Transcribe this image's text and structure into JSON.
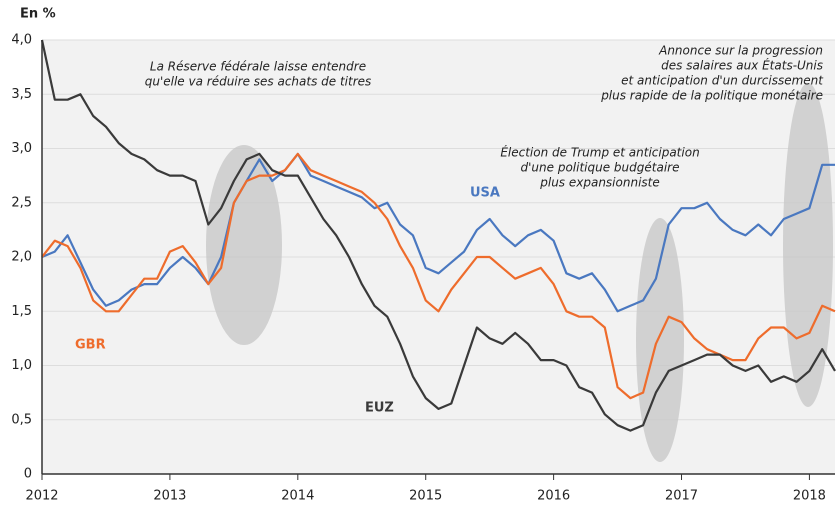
{
  "chart_data": {
    "type": "line",
    "ylabel": "En %",
    "x": [
      2012.0,
      2012.1,
      2012.2,
      2012.3,
      2012.4,
      2012.5,
      2012.6,
      2012.7,
      2012.8,
      2012.9,
      2013.0,
      2013.1,
      2013.2,
      2013.3,
      2013.4,
      2013.5,
      2013.6,
      2013.7,
      2013.8,
      2013.9,
      2014.0,
      2014.1,
      2014.2,
      2014.3,
      2014.4,
      2014.5,
      2014.6,
      2014.7,
      2014.8,
      2014.9,
      2015.0,
      2015.1,
      2015.2,
      2015.3,
      2015.4,
      2015.5,
      2015.6,
      2015.7,
      2015.8,
      2015.9,
      2016.0,
      2016.1,
      2016.2,
      2016.3,
      2016.4,
      2016.5,
      2016.6,
      2016.7,
      2016.8,
      2016.9,
      2017.0,
      2017.1,
      2017.2,
      2017.3,
      2017.4,
      2017.5,
      2017.6,
      2017.7,
      2017.8,
      2017.9,
      2018.0,
      2018.1,
      2018.2
    ],
    "series": [
      {
        "name": "USA",
        "color": "#4a78c0",
        "values": [
          2.0,
          2.05,
          2.2,
          1.95,
          1.7,
          1.55,
          1.6,
          1.7,
          1.75,
          1.75,
          1.9,
          2.0,
          1.9,
          1.75,
          2.0,
          2.5,
          2.7,
          2.9,
          2.7,
          2.8,
          2.95,
          2.75,
          2.7,
          2.65,
          2.6,
          2.55,
          2.45,
          2.5,
          2.3,
          2.2,
          1.9,
          1.85,
          1.95,
          2.05,
          2.25,
          2.35,
          2.2,
          2.1,
          2.2,
          2.25,
          2.15,
          1.85,
          1.8,
          1.85,
          1.7,
          1.5,
          1.55,
          1.6,
          1.8,
          2.3,
          2.45,
          2.45,
          2.5,
          2.35,
          2.25,
          2.2,
          2.3,
          2.2,
          2.35,
          2.4,
          2.45,
          2.85,
          2.85
        ]
      },
      {
        "name": "GBR",
        "color": "#ee6c2c",
        "values": [
          2.0,
          2.15,
          2.1,
          1.9,
          1.6,
          1.5,
          1.5,
          1.65,
          1.8,
          1.8,
          2.05,
          2.1,
          1.95,
          1.75,
          1.9,
          2.5,
          2.7,
          2.75,
          2.75,
          2.8,
          2.95,
          2.8,
          2.75,
          2.7,
          2.65,
          2.6,
          2.5,
          2.35,
          2.1,
          1.9,
          1.6,
          1.5,
          1.7,
          1.85,
          2.0,
          2.0,
          1.9,
          1.8,
          1.85,
          1.9,
          1.75,
          1.5,
          1.45,
          1.45,
          1.35,
          0.8,
          0.7,
          0.75,
          1.2,
          1.45,
          1.4,
          1.25,
          1.15,
          1.1,
          1.05,
          1.05,
          1.25,
          1.35,
          1.35,
          1.25,
          1.3,
          1.55,
          1.5
        ]
      },
      {
        "name": "EUZ",
        "color": "#3a3a3a",
        "values": [
          4.0,
          3.45,
          3.45,
          3.5,
          3.3,
          3.2,
          3.05,
          2.95,
          2.9,
          2.8,
          2.75,
          2.75,
          2.7,
          2.3,
          2.45,
          2.7,
          2.9,
          2.95,
          2.8,
          2.75,
          2.75,
          2.55,
          2.35,
          2.2,
          2.0,
          1.75,
          1.55,
          1.45,
          1.2,
          0.9,
          0.7,
          0.6,
          0.65,
          1.0,
          1.35,
          1.25,
          1.2,
          1.3,
          1.2,
          1.05,
          1.05,
          1.0,
          0.8,
          0.75,
          0.55,
          0.45,
          0.4,
          0.45,
          0.75,
          0.95,
          1.0,
          1.05,
          1.1,
          1.1,
          1.0,
          0.95,
          1.0,
          0.85,
          0.9,
          0.85,
          0.95,
          1.15,
          0.95
        ]
      }
    ],
    "xlim": [
      2012,
      2018.2
    ],
    "xticks": [
      2012,
      2013,
      2014,
      2015,
      2016,
      2017,
      2018
    ],
    "ylim": [
      0,
      4
    ],
    "yticks": [
      0,
      {
        "value": 0.5,
        "label": "0,5"
      },
      {
        "value": 1,
        "label": "1,0"
      },
      {
        "value": 1.5,
        "label": "1,5"
      },
      {
        "value": 2,
        "label": "2,0"
      },
      {
        "value": 2.5,
        "label": "2,5"
      },
      {
        "value": 3,
        "label": "3,0"
      },
      {
        "value": 3.5,
        "label": "3,5"
      },
      {
        "value": 4,
        "label": "4,0"
      }
    ],
    "grid": true,
    "annotations": [
      [
        "La Réserve fédérale laisse entendre",
        "qu'elle va réduire ses achats de titres"
      ],
      [
        "Élection de Trump et anticipation",
        "d'une politique budgétaire",
        "plus expansionniste"
      ],
      [
        "Annonce sur la progression",
        "des salaires aux États-Unis",
        "et anticipation d'un durcissement",
        "plus rapide de la politique monétaire"
      ]
    ]
  }
}
